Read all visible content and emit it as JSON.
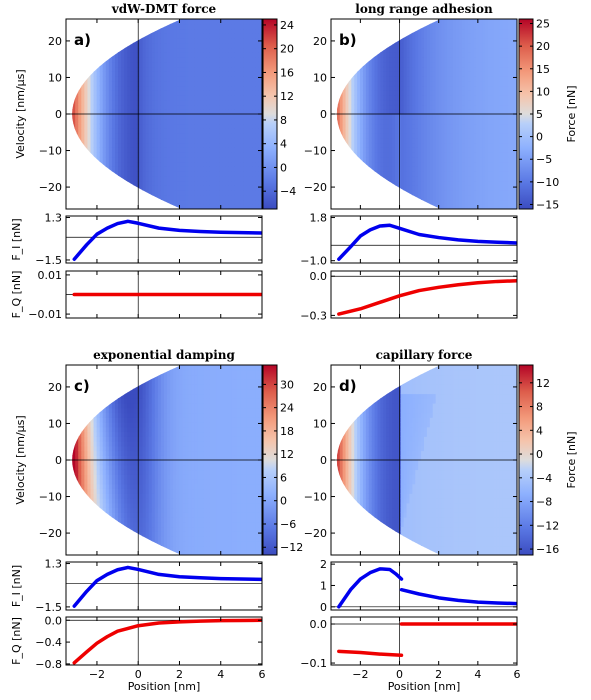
{
  "chart_data": [
    {
      "type": "heatmap",
      "panel_label": "a)",
      "title": "vdW-DMT force",
      "xlabel": "",
      "ylabel": "Velocity [nm/μs]",
      "xlim": [
        -3.5,
        6
      ],
      "ylim": [
        -26,
        26
      ],
      "yticks": [
        -20,
        -10,
        0,
        10,
        20
      ],
      "colorbar": {
        "label": "",
        "range": [
          -7,
          25
        ],
        "ticks": [
          -4,
          0,
          4,
          8,
          12,
          16,
          20,
          24
        ]
      },
      "model": "vdw",
      "sub_plots": [
        {
          "name": "F_I",
          "ylabel": "F_I [nN]",
          "yticks": [
            -1.5,
            1.3
          ],
          "ylim": [
            -1.7,
            1.4
          ],
          "color": "#0000ee",
          "x": [
            -3.1,
            -2.5,
            -2.0,
            -1.5,
            -1.0,
            -0.5,
            0.0,
            1.0,
            2.0,
            3.0,
            4.0,
            5.0,
            6.0
          ],
          "y": [
            -1.45,
            -0.5,
            0.2,
            0.6,
            0.9,
            1.05,
            0.92,
            0.6,
            0.45,
            0.38,
            0.33,
            0.3,
            0.28
          ]
        },
        {
          "name": "F_Q",
          "ylabel": "F_Q [nN]",
          "yticks": [
            -0.01,
            0.01
          ],
          "ylim": [
            -0.012,
            0.012
          ],
          "color": "#ee0000",
          "x": [
            -3.1,
            0.0,
            6.0
          ],
          "y": [
            0.0,
            0.0,
            0.0
          ]
        }
      ]
    },
    {
      "type": "heatmap",
      "panel_label": "b)",
      "title": "long range adhesion",
      "xlabel": "",
      "ylabel": "",
      "xlim": [
        -3.5,
        6
      ],
      "ylim": [
        -26,
        26
      ],
      "yticks": [
        -20,
        -10,
        0,
        10,
        20
      ],
      "colorbar": {
        "label": "Force [nN]",
        "range": [
          -16,
          26
        ],
        "ticks": [
          -15,
          -10,
          -5,
          0,
          5,
          10,
          15,
          20,
          25
        ]
      },
      "model": "adh",
      "sub_plots": [
        {
          "name": "F_I",
          "ylabel": "",
          "yticks": [
            -1.0,
            1.8
          ],
          "ylim": [
            -1.15,
            1.9
          ],
          "color": "#0000ee",
          "x": [
            -3.1,
            -2.5,
            -2.0,
            -1.5,
            -1.0,
            -0.5,
            0.0,
            1.0,
            2.0,
            3.0,
            4.0,
            5.0,
            6.0
          ],
          "y": [
            -0.9,
            -0.1,
            0.6,
            1.0,
            1.25,
            1.3,
            1.1,
            0.7,
            0.5,
            0.35,
            0.25,
            0.2,
            0.15
          ]
        },
        {
          "name": "F_Q",
          "ylabel": "",
          "yticks": [
            0.0,
            -0.3
          ],
          "ylim": [
            -0.32,
            0.04
          ],
          "color": "#ee0000",
          "x": [
            -3.1,
            -2.0,
            -1.0,
            0.0,
            1.0,
            2.0,
            3.0,
            4.0,
            5.0,
            6.0
          ],
          "y": [
            -0.29,
            -0.25,
            -0.2,
            -0.15,
            -0.11,
            -0.085,
            -0.065,
            -0.05,
            -0.04,
            -0.035
          ]
        }
      ]
    },
    {
      "type": "heatmap",
      "panel_label": "c)",
      "title": "exponential damping",
      "xlabel": "",
      "ylabel": "Velocity [nm/μs]",
      "xlim": [
        -3.5,
        6
      ],
      "ylim": [
        -26,
        26
      ],
      "yticks": [
        -20,
        -10,
        0,
        10,
        20
      ],
      "colorbar": {
        "label": "",
        "range": [
          -14,
          35
        ],
        "ticks": [
          -12,
          -6,
          0,
          6,
          12,
          18,
          24,
          30
        ]
      },
      "model": "exp",
      "sub_plots": [
        {
          "name": "F_I",
          "ylabel": "F_I [nN]",
          "yticks": [
            -1.5,
            1.3
          ],
          "ylim": [
            -1.7,
            1.4
          ],
          "color": "#0000ee",
          "x": [
            -3.1,
            -2.5,
            -2.0,
            -1.5,
            -1.0,
            -0.5,
            0.0,
            1.0,
            2.0,
            3.0,
            4.0,
            5.0,
            6.0
          ],
          "y": [
            -1.45,
            -0.5,
            0.2,
            0.6,
            0.9,
            1.05,
            0.92,
            0.6,
            0.45,
            0.38,
            0.33,
            0.3,
            0.28
          ]
        },
        {
          "name": "F_Q",
          "ylabel": "F_Q [nN]",
          "yticks": [
            0.0,
            -0.4,
            -0.8
          ],
          "ylim": [
            -0.82,
            0.06
          ],
          "color": "#ee0000",
          "x": [
            -3.1,
            -2.5,
            -2.0,
            -1.5,
            -1.0,
            0.0,
            1.0,
            2.0,
            3.0,
            4.0,
            5.0,
            6.0
          ],
          "y": [
            -0.78,
            -0.58,
            -0.42,
            -0.3,
            -0.2,
            -0.1,
            -0.05,
            -0.03,
            -0.015,
            -0.007,
            -0.003,
            0.0
          ]
        }
      ]
    },
    {
      "type": "heatmap",
      "panel_label": "d)",
      "title": "capillary force",
      "xlabel": "Position [nm]",
      "ylabel": "",
      "xlim": [
        -3.5,
        6
      ],
      "ylim": [
        -26,
        26
      ],
      "yticks": [
        -20,
        -10,
        0,
        10,
        20
      ],
      "colorbar": {
        "label": "Force [nN]",
        "range": [
          -17,
          15
        ],
        "ticks": [
          -16,
          -12,
          -8,
          -4,
          0,
          4,
          8,
          12
        ]
      },
      "model": "cap",
      "sub_plots": [
        {
          "name": "F_I",
          "ylabel": "",
          "yticks": [
            0.0,
            1.0,
            2.0
          ],
          "ylim": [
            -0.15,
            2.1
          ],
          "color": "#0000ee",
          "x": [
            -3.1,
            -2.5,
            -2.0,
            -1.5,
            -1.0,
            -0.5,
            -0.2,
            0.1,
            0.1,
            1.0,
            2.0,
            3.0,
            4.0,
            5.0,
            6.0
          ],
          "y": [
            0.0,
            0.8,
            1.3,
            1.6,
            1.78,
            1.75,
            1.55,
            1.3,
            0.8,
            0.6,
            0.42,
            0.3,
            0.22,
            0.18,
            0.15
          ],
          "break_after_index": 7
        },
        {
          "name": "F_Q",
          "ylabel": "",
          "yticks": [
            0.0,
            -0.1
          ],
          "ylim": [
            -0.105,
            0.018
          ],
          "color": "#ee0000",
          "x": [
            -3.1,
            -2.0,
            -1.0,
            0.1,
            0.1,
            2.0,
            4.0,
            6.0
          ],
          "y": [
            -0.07,
            -0.073,
            -0.077,
            -0.08,
            0.0,
            0.0,
            0.0,
            0.0
          ],
          "break_after_index": 3
        }
      ]
    }
  ],
  "common": {
    "xticks": [
      -2,
      0,
      2,
      4,
      6
    ],
    "bottom_xlabel": "Position [nm]"
  }
}
